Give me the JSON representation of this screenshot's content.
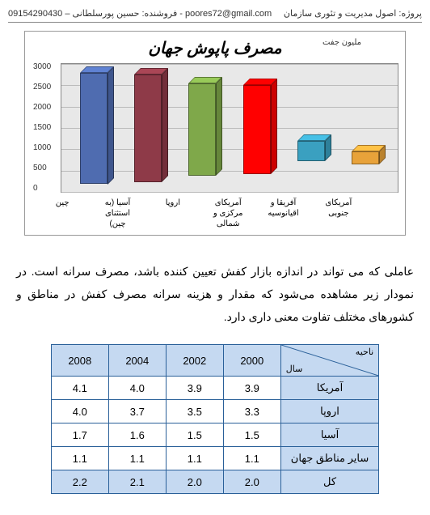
{
  "header": {
    "project": "پروژه: اصول مدیریت و تئوری سازمان",
    "seller": "فروشنده: حسین پورسلطانی – 09154290430  -",
    "email": "poores72@gmail.com"
  },
  "chart": {
    "title": "مصرف پاپوش جهان",
    "y_label": "ملیون جفت",
    "ymax": 3000,
    "ytick_step": 500,
    "yticks": [
      "3000",
      "2500",
      "2000",
      "1500",
      "1000",
      "500",
      "0"
    ],
    "background_color": "#e8e8e8",
    "grid_color": "#bbbbbb",
    "bars": [
      {
        "label": "چین",
        "value": 2800,
        "color": "#4f6cb0"
      },
      {
        "label": "آسیا (به استثنای چین)",
        "value": 2750,
        "color": "#8e3a48"
      },
      {
        "label": "اروپا",
        "value": 2550,
        "color": "#7fa84a"
      },
      {
        "label": "آمریکای مرکزی و شمالی",
        "value": 2500,
        "color": "#ff0000"
      },
      {
        "label": "آفریقا و اقیانوسیه",
        "value": 1200,
        "color": "#3aa0c0"
      },
      {
        "label": "آمریکای جنوبی",
        "value": 950,
        "color": "#e8a23a"
      }
    ]
  },
  "paragraph": "عاملی که می تواند در اندازه بازار کفش تعیین کننده باشد، مصرف سرانه است. در نمودار زیر مشاهده می‌شود که مقدار و هزینه سرانه مصرف کفش در مناطق  و کشورهای مختلف تفاوت معنی داری دارد.",
  "table": {
    "diag": {
      "row": "ناحیه",
      "col": "سال"
    },
    "columns": [
      "2000",
      "2002",
      "2004",
      "2008"
    ],
    "rows": [
      {
        "label": "آمریکا",
        "cells": [
          "3.9",
          "3.9",
          "4.0",
          "4.1"
        ]
      },
      {
        "label": "اروپا",
        "cells": [
          "3.3",
          "3.5",
          "3.7",
          "4.0"
        ]
      },
      {
        "label": "آسیا",
        "cells": [
          "1.5",
          "1.5",
          "1.6",
          "1.7"
        ]
      },
      {
        "label": "سایر مناطق جهان",
        "cells": [
          "1.1",
          "1.1",
          "1.1",
          "1.1"
        ]
      }
    ],
    "total": {
      "label": "کل",
      "cells": [
        "2.0",
        "2.0",
        "2.1",
        "2.2"
      ]
    }
  }
}
